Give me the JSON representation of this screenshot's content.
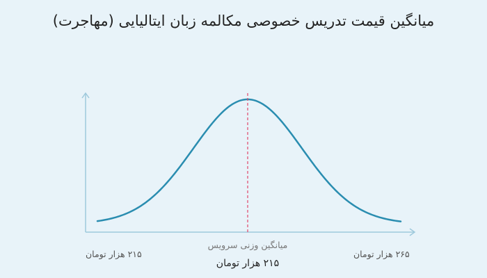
{
  "chart_data": {
    "type": "line",
    "title": "میانگین قیمت تدریس خصوصی مکالمه زبان ایتالیایی (مهاجرت)",
    "x_min_label": "۲۱۵ هزار تومان",
    "x_max_label": "۲۶۵ هزار تومان",
    "mean_caption": "میانگین وزنی سرویس",
    "mean_value_label": "۲۱۵ هزار تومان",
    "curve": "bell",
    "colors": {
      "curve": "#2a8db0",
      "mean_line": "#e0466a",
      "axis": "#9ec9dc"
    }
  }
}
